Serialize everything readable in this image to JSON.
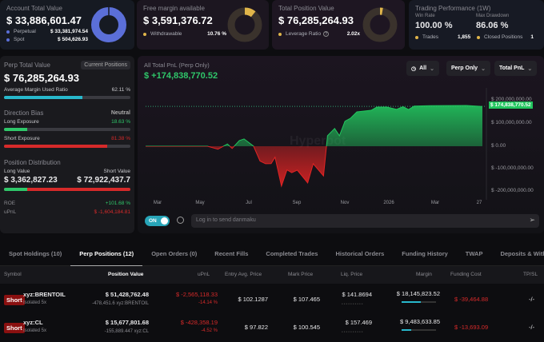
{
  "account": {
    "label": "Account Total Value",
    "value": "$ 33,886,601.47",
    "items": [
      {
        "label": "Perpetual",
        "value": "$ 33,381,974.54"
      },
      {
        "label": "Spot",
        "value": "$ 504,626.93"
      }
    ],
    "color": "#5b6fd8"
  },
  "margin": {
    "label": "Free margin available",
    "value": "$ 3,591,376.72",
    "item_label": "Withdrawable",
    "item_value": "10.76 %",
    "pct": 10.76,
    "color": "#e0b54a"
  },
  "position": {
    "label": "Total Position Value",
    "value": "$ 76,285,264.93",
    "item_label": "Leverage Ratio",
    "item_value": "2.02x",
    "color": "#e0b54a"
  },
  "performance": {
    "label": "Trading Performance (1W)",
    "win_rate_label": "Win Rate",
    "win_rate": "100.00 %",
    "drawdown_label": "Max Drawdown",
    "drawdown": "86.06 %",
    "trades_label": "Trades",
    "trades": "1,855",
    "closed_label": "Closed Positions",
    "closed": "1"
  },
  "perp": {
    "label": "Perp Total Value",
    "button": "Current Positions",
    "value": "$ 76,285,264.93",
    "margin_ratio_label": "Average Margin Used Ratio",
    "margin_ratio": "62.11 %",
    "margin_ratio_pct": 62.11,
    "bias_label": "Direction Bias",
    "bias": "Neutral",
    "long_label": "Long Exposure",
    "long": "18.63 %",
    "long_pct": 18.63,
    "short_label": "Short Exposure",
    "short": "81.38 %",
    "short_pct": 81.38,
    "dist_label": "Position Distribution",
    "long_value_label": "Long Value",
    "short_value_label": "Short Value",
    "long_value": "$ 3,362,827.23",
    "short_value": "$ 72,922,437.7",
    "roe_label": "ROE",
    "roe": "+101.68 %",
    "upnl_label": "uPnL",
    "upnl": "$ -1,604,184.81"
  },
  "chart": {
    "title": "All Total PnL (Perp Only)",
    "value": "$ +174,838,770.52",
    "filters": [
      "All",
      "Perp Only",
      "Total PnL"
    ],
    "watermark": "Hyperbot",
    "toggle": "ON",
    "danmaku_placeholder": "Log in to send danmaku"
  },
  "chart_data": {
    "type": "area",
    "ylim": [
      -240000000,
      230000000
    ],
    "yticks": [
      "$ 200,000,000.00",
      "$ 100,000,000.00",
      "$ 0.00",
      "$ -100,000,000.00",
      "$ -200,000,000.00"
    ],
    "xticks": [
      "Mar",
      "May",
      "Jul",
      "Sep",
      "Nov",
      "2026",
      "Mar",
      "27"
    ],
    "last_label": "$ 174,838,770.52",
    "x": [
      "2025-02-16",
      "2025-05-05",
      "2025-05-18",
      "2025-05-30",
      "2025-06-05",
      "2025-06-14",
      "2025-06-20",
      "2025-07-02",
      "2025-07-10",
      "2025-07-17",
      "2025-07-24",
      "2025-07-29",
      "2025-08-06",
      "2025-08-13",
      "2025-08-19",
      "2025-08-26",
      "2025-09-08",
      "2025-09-15",
      "2025-09-28",
      "2025-10-03",
      "2025-10-12",
      "2025-10-18",
      "2025-10-25",
      "2025-11-01",
      "2025-11-09",
      "2025-11-17",
      "2025-11-27",
      "2025-12-04",
      "2025-12-17",
      "2025-12-29",
      "2026-01-06",
      "2026-01-13",
      "2026-01-20",
      "2026-02-09",
      "2026-03-27",
      "2026-04-16"
    ],
    "y": [
      0,
      0,
      -13000000,
      10000000,
      -10000000,
      25000000,
      32000000,
      0,
      -65000000,
      -77000000,
      -76000000,
      -48000000,
      -175000000,
      -104000000,
      -116000000,
      -105000000,
      -161000000,
      -77000000,
      -130000000,
      46000000,
      78000000,
      46000000,
      110000000,
      123000000,
      151000000,
      154000000,
      158000000,
      172000000,
      172000000,
      162000000,
      174000000,
      161000000,
      176000000,
      178000000,
      179000000,
      174838770.52
    ],
    "positive_color": "#22c55e",
    "negative_color": "#e02424"
  },
  "tabs": [
    "Spot Holdings (10)",
    "Perp Positions (12)",
    "Open Orders (0)",
    "Recent Fills",
    "Completed Trades",
    "Historical Orders",
    "Funding History",
    "TWAP",
    "Deposits & Withd"
  ],
  "table": {
    "headers": [
      "Symbol",
      "Position Value",
      "uPnL",
      "Entry Avg. Price",
      "Mark Price",
      "Liq. Price",
      "Margin",
      "Funding Cost",
      "TP/SL"
    ],
    "rows": [
      {
        "side": "Short",
        "symbol": "xyz:BRENTOIL",
        "mode": "Isolated 5x",
        "value": "$ 51,428,762.48",
        "size": "-478,451.6 xyz:BRENTOIL",
        "upnl": "$ -2,565,118.33",
        "upnl_pct": "-14.14 %",
        "entry": "$ 102.1287",
        "mark": "$ 107.465",
        "liq": "$ 141.8694",
        "margin": "$ 18,145,823.52",
        "margin_pct": 55,
        "funding": "$ -39,464.88",
        "tpsl": "-/-"
      },
      {
        "side": "Short",
        "symbol": "xyz:CL",
        "mode": "Isolated 5x",
        "value": "$ 15,677,801.68",
        "size": "-155,889.447 xyz:CL",
        "upnl": "$ -428,358.19",
        "upnl_pct": "-4.52 %",
        "entry": "$ 97.822",
        "mark": "$ 100.545",
        "liq": "$ 157.469",
        "margin": "$ 9,483,633.85",
        "margin_pct": 28,
        "funding": "$ -13,693.09",
        "tpsl": "-/-"
      }
    ]
  }
}
